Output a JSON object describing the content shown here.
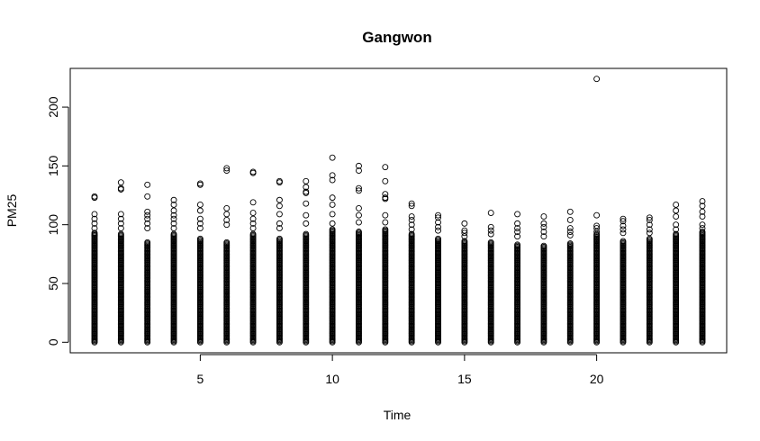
{
  "chart_data": {
    "type": "scatter",
    "title": "Gangwon",
    "xlabel": "Time",
    "ylabel": "PM25",
    "xlim": [
      0.08,
      24.92
    ],
    "ylim": [
      -8.96,
      232.96
    ],
    "x_ticks": [
      5,
      10,
      15,
      20
    ],
    "y_ticks": [
      0,
      50,
      100,
      150,
      200
    ],
    "grid": false,
    "legend": "none",
    "marker": "open-circle",
    "series": [
      {
        "x": [
          1,
          2,
          3,
          4,
          5,
          6,
          7,
          8,
          9,
          10,
          11,
          12,
          13,
          14,
          15,
          16,
          17,
          18,
          19,
          20,
          21,
          22,
          23,
          24
        ],
        "max": [
          124,
          136,
          134,
          121,
          135,
          148,
          145,
          137,
          137,
          157,
          150,
          149,
          118,
          108,
          101,
          110,
          109,
          107,
          111,
          224,
          105,
          106,
          117,
          120
        ],
        "outliers": [
          [
            124,
            123,
            109,
            105,
            101,
            97,
            93,
            91
          ],
          [
            136,
            131,
            130,
            109,
            105,
            101,
            97
          ],
          [
            134,
            124,
            111,
            108,
            105,
            101,
            97
          ],
          [
            121,
            117,
            112,
            108,
            105,
            101,
            97
          ],
          [
            135,
            134,
            117,
            112,
            105,
            101,
            97
          ],
          [
            148,
            146,
            114,
            109,
            104,
            100
          ],
          [
            145,
            144,
            119,
            110,
            105,
            101,
            97
          ],
          [
            137,
            136,
            121,
            116,
            109,
            101,
            97
          ],
          [
            137,
            132,
            128,
            127,
            118,
            108,
            101
          ],
          [
            157,
            142,
            138,
            123,
            117,
            109,
            101
          ],
          [
            150,
            146,
            131,
            129,
            114,
            108,
            102
          ],
          [
            149,
            137,
            126,
            123,
            122,
            108,
            102
          ],
          [
            118,
            116,
            107,
            104,
            100,
            96
          ],
          [
            108,
            106,
            102,
            98,
            95
          ],
          [
            101,
            95,
            93,
            90
          ],
          [
            110,
            98,
            95,
            92
          ],
          [
            109,
            101,
            97,
            94,
            90
          ],
          [
            107,
            101,
            98,
            94,
            90
          ],
          [
            111,
            104,
            97,
            94,
            91
          ],
          [
            224,
            108,
            99,
            97,
            94
          ],
          [
            105,
            103,
            99,
            96,
            93
          ],
          [
            106,
            104,
            100,
            96,
            93
          ],
          [
            117,
            112,
            107,
            100,
            96
          ],
          [
            120,
            116,
            111,
            107,
            100,
            97
          ]
        ],
        "dense_top": [
          92,
          92,
          85,
          92,
          88,
          85,
          92,
          88,
          92,
          96,
          94,
          96,
          92,
          88,
          86,
          85,
          83,
          82,
          84,
          92,
          86,
          88,
          92,
          94
        ]
      }
    ]
  }
}
